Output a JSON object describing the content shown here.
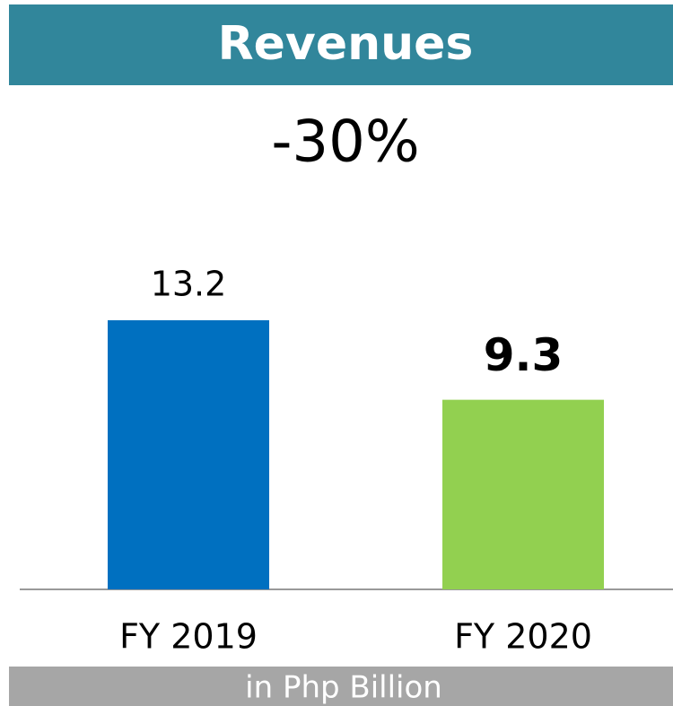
{
  "chart_data": {
    "type": "bar",
    "title": "Revenues",
    "annotation": "-30%",
    "categories": [
      "FY 2019",
      "FY 2020"
    ],
    "values": [
      13.2,
      9.3
    ],
    "colors": [
      "#0070c0",
      "#92d050"
    ],
    "note": "in Php Billion"
  }
}
